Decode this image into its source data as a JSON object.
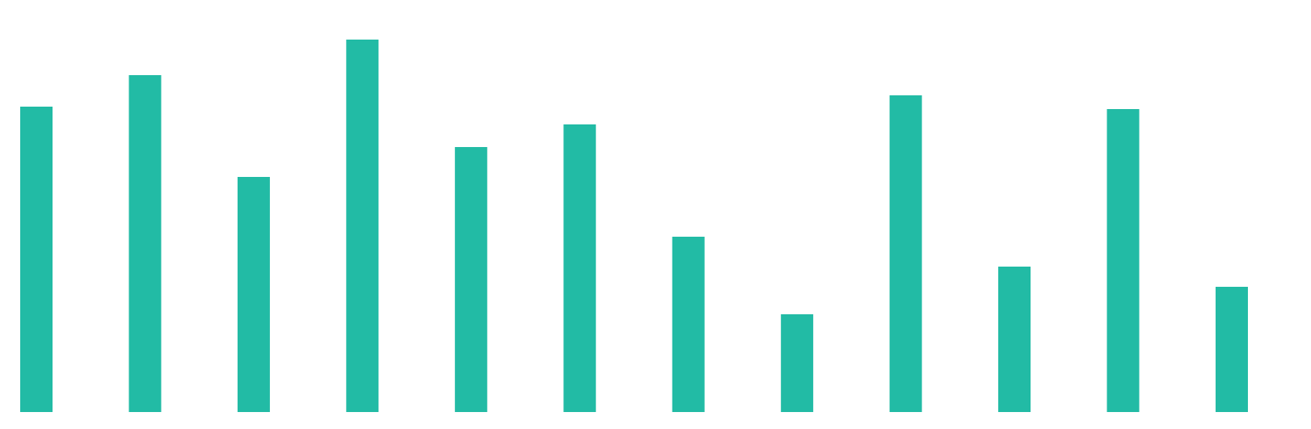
{
  "chart_data": {
    "type": "bar",
    "values": [
      378,
      417,
      291,
      461,
      328,
      356,
      217,
      121,
      392,
      180,
      375,
      155
    ],
    "color": "#22bba5",
    "ylim": [
      0,
      500
    ]
  }
}
